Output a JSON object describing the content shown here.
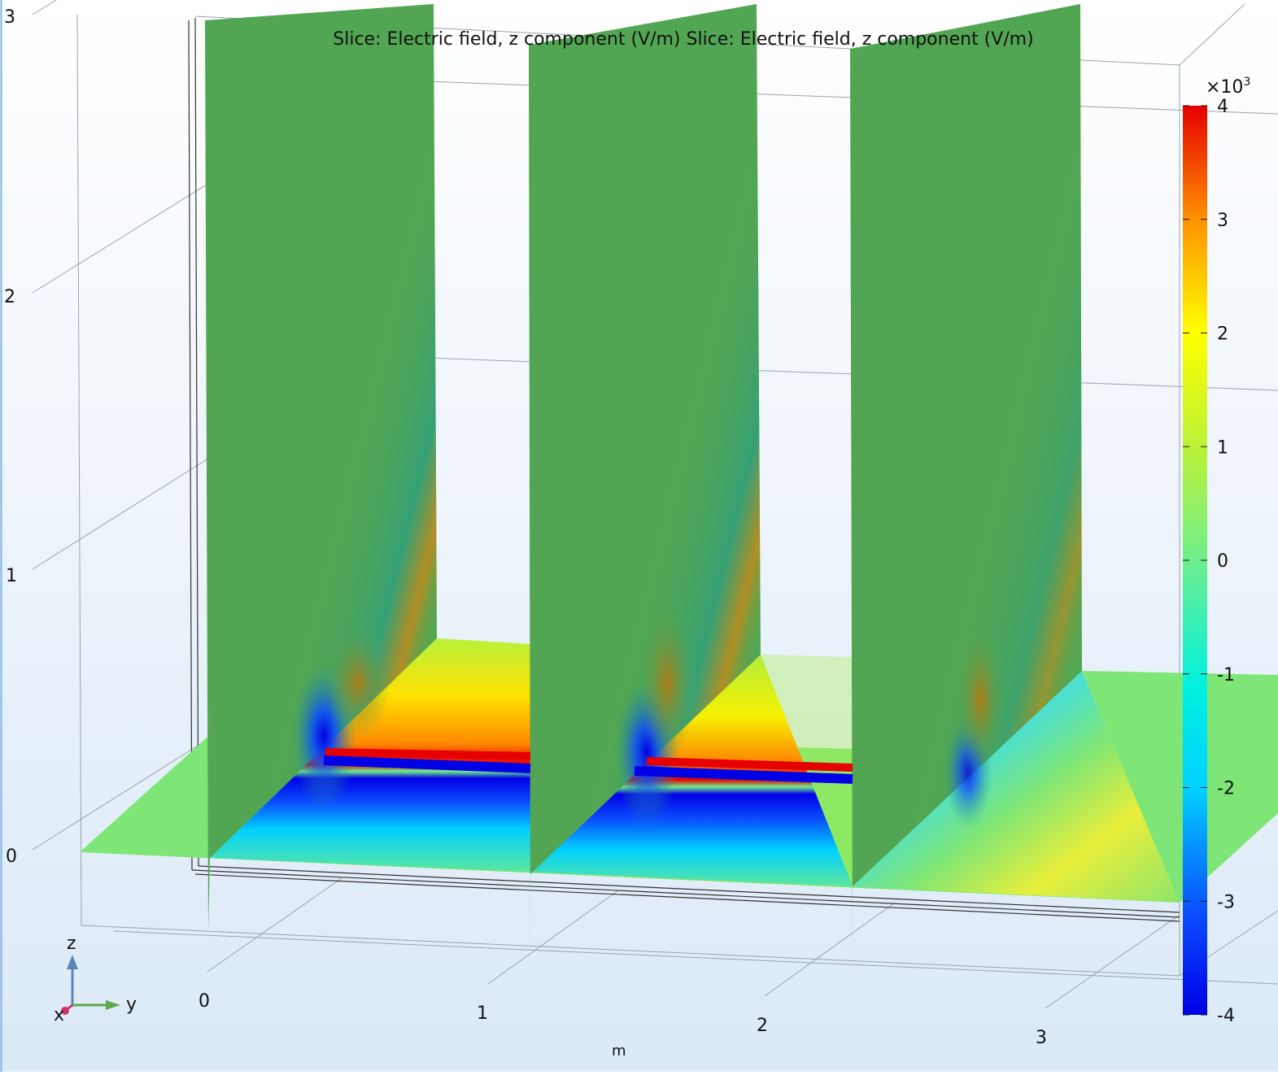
{
  "chart_data": {
    "type": "heatmap",
    "title": "Slice: Electric field, z component (V/m)  Slice: Electric field, z component (V/m)",
    "units_label": "m",
    "z_axis_ticks": [
      "3",
      "2",
      "1",
      "0"
    ],
    "y_axis_ticks": [
      "0",
      "1",
      "2",
      "3"
    ],
    "triad": {
      "x": "x",
      "y": "y",
      "z": "z"
    },
    "colorbar": {
      "multiplier": "×10",
      "exponent": "3",
      "ticks": [
        "4",
        "3",
        "2",
        "1",
        "0",
        "-1",
        "-2",
        "-3",
        "-4"
      ],
      "range": [
        -4,
        4
      ],
      "colormap": "rainbow",
      "colors": [
        "#0000e6",
        "#0a4cff",
        "#00d2ff",
        "#00f0e0",
        "#6eee8c",
        "#b8f23a",
        "#ffff00",
        "#ff9600",
        "#ff2000",
        "#e60000"
      ]
    },
    "slices": {
      "vertical_planes": 3,
      "horizontal_planes": 1,
      "field_colors": {
        "background": "#52a653",
        "floor": "#7ee676",
        "positive_peak": "#e60000",
        "negative_peak": "#0000e6"
      }
    }
  }
}
